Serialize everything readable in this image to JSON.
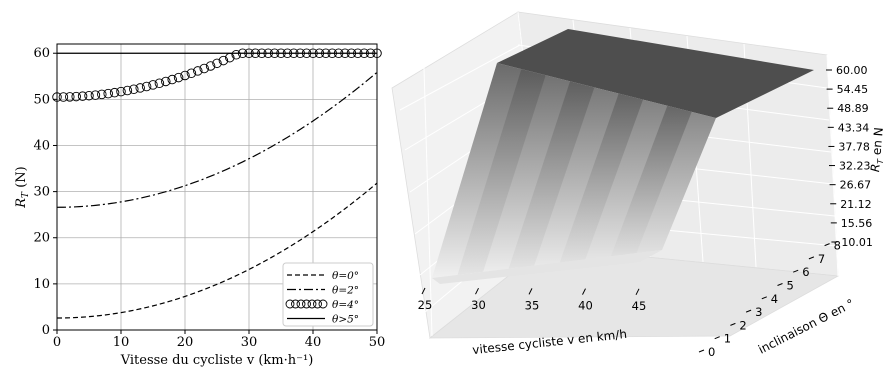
{
  "chart_data": [
    {
      "type": "line",
      "xlabel": "Vitesse du cycliste v (km·h⁻¹)",
      "ylabel_main": "R",
      "ylabel_sub": "T",
      "ylabel_unit": " (N)",
      "xlim": [
        0,
        50
      ],
      "ylim": [
        0,
        62
      ],
      "xticks": [
        0,
        10,
        20,
        30,
        40,
        50
      ],
      "yticks": [
        0,
        10,
        20,
        30,
        40,
        50,
        60
      ],
      "grid": true,
      "legend_position": "bottom-right",
      "series": [
        {
          "name": "θ=0°",
          "style": "dashed",
          "formula": {
            "a": 0.0117,
            "c": 2.6
          }
        },
        {
          "name": "θ=2°",
          "style": "dashdot",
          "formula": {
            "a": 0.0117,
            "c": 26.6
          }
        },
        {
          "name": "θ=4°",
          "style": "circles",
          "formula": {
            "a": 0.0117,
            "c": 50.5,
            "cap": 60
          }
        },
        {
          "name": "θ>5°",
          "style": "solid",
          "formula": {
            "a": 0,
            "c": 60
          }
        }
      ],
      "x_sample_step": 1
    },
    {
      "type": "surface3d",
      "xlabel": "vitesse cycliste v en km/h",
      "ylabel": "inclinaison Θ en °",
      "zlabel_main": "R",
      "zlabel_sub": "T",
      "zlabel_unit": " en N",
      "xticks": [
        "25",
        "30",
        "35",
        "40",
        "45"
      ],
      "yticks": [
        "0",
        "1",
        "2",
        "3",
        "4",
        "5",
        "6",
        "7",
        "8"
      ],
      "zticks": [
        "60.00",
        "54.45",
        "48.89",
        "43.34",
        "37.78",
        "32.23",
        "26.67",
        "21.12",
        "15.56",
        "10.01"
      ],
      "zlim": [
        10.01,
        60.0
      ],
      "colors": {
        "low": "#e8e8e8",
        "high": "#4a4a4a"
      }
    }
  ]
}
